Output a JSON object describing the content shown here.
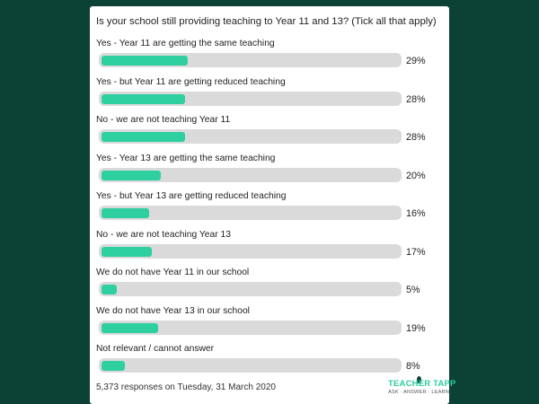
{
  "chart_data": {
    "type": "bar",
    "orientation": "horizontal",
    "title": "Is your school still providing teaching to Year 11 and 13? (Tick all that apply)",
    "categories": [
      "Yes - Year 11 are getting the same teaching",
      "Yes - but Year 11 are getting reduced teaching",
      "No - we are not teaching Year 11",
      "Yes - Year 13 are getting the same teaching",
      "Yes - but Year 13 are getting reduced teaching",
      "No - we are not teaching Year 13",
      "We do not have Year 11 in our school",
      "We do not have Year 13 in our school",
      "Not relevant / cannot answer"
    ],
    "values": [
      29,
      28,
      28,
      20,
      16,
      17,
      5,
      19,
      8
    ],
    "value_labels": [
      "29%",
      "28%",
      "28%",
      "20%",
      "16%",
      "17%",
      "5%",
      "19%",
      "8%"
    ],
    "xlim": [
      0,
      100
    ],
    "bar_color": "#2ecfa0",
    "track_color": "#dadada"
  },
  "footer": {
    "responses": "5,373 responses on Tuesday, 31 March 2020"
  },
  "logo": {
    "name": "TEACHER TAPP",
    "tagline": "ASK · ANSWER · LEARN"
  },
  "colors": {
    "background": "#0c4135",
    "card": "#ffffff"
  }
}
